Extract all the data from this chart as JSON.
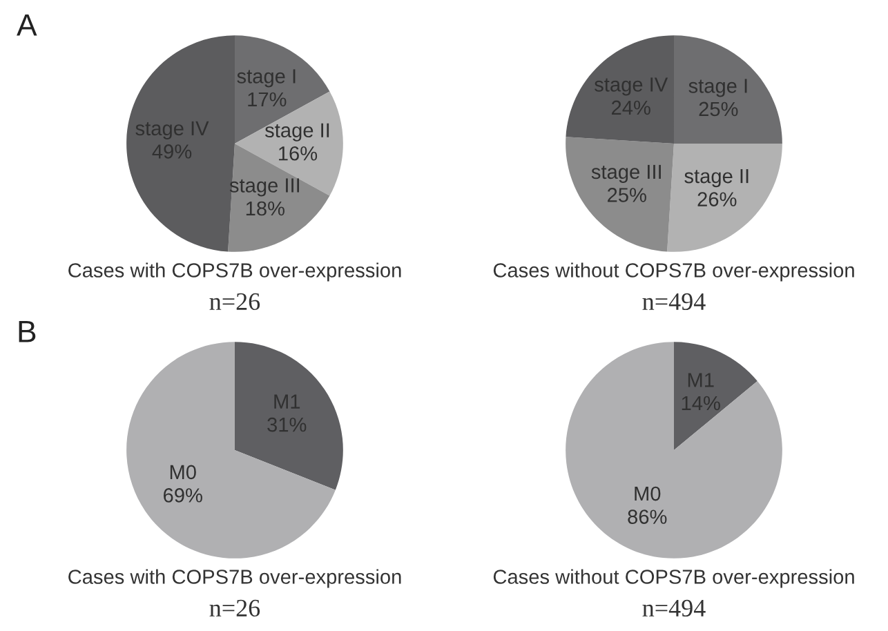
{
  "chart_data": [
    {
      "type": "pie",
      "annotations": [
        "A"
      ],
      "title": "Cases with COPS7B over-expression",
      "subtitle": "n=26",
      "categories": [
        "stage I",
        "stage II",
        "stage III",
        "stage IV"
      ],
      "values": [
        17,
        16,
        18,
        49
      ],
      "value_labels": [
        "17%",
        "16%",
        "18%",
        "49%"
      ],
      "colors": [
        "#6e6e70",
        "#b2b2b2",
        "#8c8c8c",
        "#5c5c5e"
      ]
    },
    {
      "type": "pie",
      "title": "Cases without COPS7B over-expression",
      "subtitle": "n=494",
      "categories": [
        "stage I",
        "stage II",
        "stage III",
        "stage IV"
      ],
      "values": [
        25,
        26,
        25,
        24
      ],
      "value_labels": [
        "25%",
        "26%",
        "25%",
        "24%"
      ],
      "colors": [
        "#6e6e70",
        "#b2b2b2",
        "#8c8c8c",
        "#5c5c5e"
      ]
    },
    {
      "type": "pie",
      "annotations": [
        "B"
      ],
      "title": "Cases with COPS7B over-expression",
      "subtitle": "n=26",
      "categories": [
        "M1",
        "M0"
      ],
      "values": [
        31,
        69
      ],
      "value_labels": [
        "31%",
        "69%"
      ],
      "colors": [
        "#5f5f62",
        "#b0b0b2"
      ]
    },
    {
      "type": "pie",
      "title": "Cases without COPS7B over-expression",
      "subtitle": "n=494",
      "categories": [
        "M1",
        "M0"
      ],
      "values": [
        14,
        86
      ],
      "value_labels": [
        "14%",
        "86%"
      ],
      "colors": [
        "#5f5f62",
        "#b0b0b2"
      ]
    }
  ]
}
